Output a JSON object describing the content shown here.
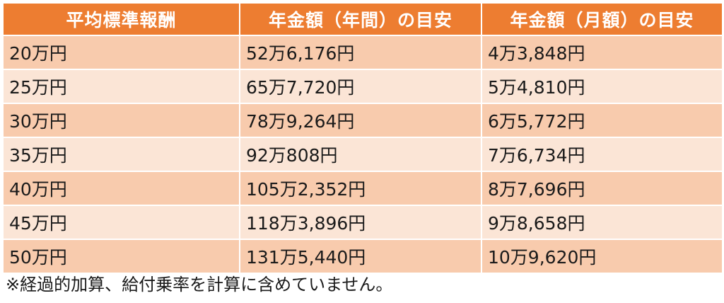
{
  "table": {
    "headers": [
      "平均標準報酬",
      "年金額（年間）の目安",
      "年金額（月額）の目安"
    ],
    "rows": [
      [
        "20万円",
        "52万6,176円",
        "4万3,848円"
      ],
      [
        "25万円",
        "65万7,720円",
        "5万4,810円"
      ],
      [
        "30万円",
        "78万9,264円",
        "6万5,772円"
      ],
      [
        "35万円",
        "92万808円",
        "7万6,734円"
      ],
      [
        "40万円",
        "105万2,352円",
        "8万7,696円"
      ],
      [
        "45万円",
        "118万3,896円",
        "9万8,658円"
      ],
      [
        "50万円",
        "131万5,440円",
        "10万9,620円"
      ]
    ]
  },
  "footnote": "※経過的加算、給付乗率を計算に含めていません。",
  "colors": {
    "header_bg": "#ed7d31",
    "row_odd_bg": "#f8cbad",
    "row_even_bg": "#fbe5d6",
    "header_text": "#ffffff"
  }
}
